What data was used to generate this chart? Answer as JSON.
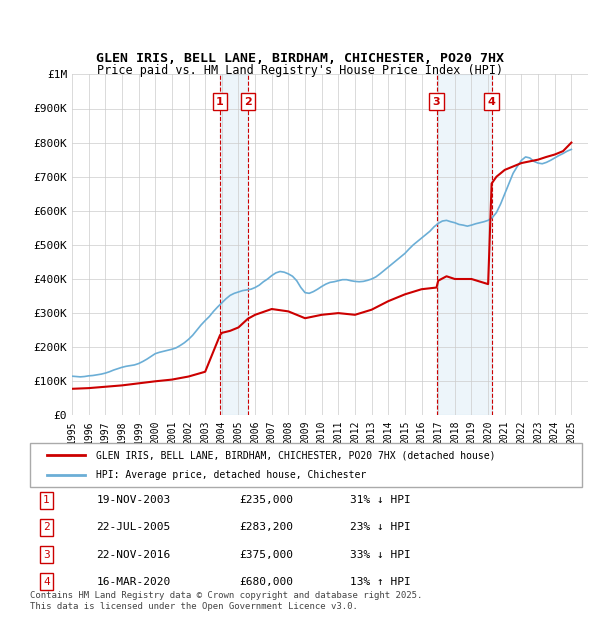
{
  "title1": "GLEN IRIS, BELL LANE, BIRDHAM, CHICHESTER, PO20 7HX",
  "title2": "Price paid vs. HM Land Registry's House Price Index (HPI)",
  "ylabel_ticks": [
    "£0",
    "£100K",
    "£200K",
    "£300K",
    "£400K",
    "£500K",
    "£600K",
    "£700K",
    "£800K",
    "£900K",
    "£1M"
  ],
  "ytick_values": [
    0,
    100000,
    200000,
    300000,
    400000,
    500000,
    600000,
    700000,
    800000,
    900000,
    1000000
  ],
  "xlim": [
    1995,
    2026
  ],
  "ylim": [
    0,
    1000000
  ],
  "hpi_color": "#6baed6",
  "price_color": "#cc0000",
  "transaction_color": "#cc0000",
  "grid_color": "#cccccc",
  "bg_color": "#ffffff",
  "transactions": [
    {
      "date_num": 2003.89,
      "price": 235000,
      "label": "1",
      "direction": "down",
      "pct": 31
    },
    {
      "date_num": 2005.56,
      "price": 283200,
      "label": "2",
      "direction": "down",
      "pct": 23
    },
    {
      "date_num": 2016.9,
      "price": 375000,
      "label": "3",
      "direction": "down",
      "pct": 33
    },
    {
      "date_num": 2020.21,
      "price": 680000,
      "label": "4",
      "direction": "up",
      "pct": 13
    }
  ],
  "transaction_table": [
    {
      "num": "1",
      "date": "19-NOV-2003",
      "price": "£235,000",
      "pct": "31%",
      "dir": "↓",
      "rel": "HPI"
    },
    {
      "num": "2",
      "date": "22-JUL-2005",
      "price": "£283,200",
      "pct": "23%",
      "dir": "↓",
      "rel": "HPI"
    },
    {
      "num": "3",
      "date": "22-NOV-2016",
      "price": "£375,000",
      "pct": "33%",
      "dir": "↓",
      "rel": "HPI"
    },
    {
      "num": "4",
      "date": "16-MAR-2020",
      "price": "£680,000",
      "pct": "13%",
      "dir": "↑",
      "rel": "HPI"
    }
  ],
  "legend_property_label": "GLEN IRIS, BELL LANE, BIRDHAM, CHICHESTER, PO20 7HX (detached house)",
  "legend_hpi_label": "HPI: Average price, detached house, Chichester",
  "footnote": "Contains HM Land Registry data © Crown copyright and database right 2025.\nThis data is licensed under the Open Government Licence v3.0.",
  "hpi_data": {
    "years": [
      1995.0,
      1995.25,
      1995.5,
      1995.75,
      1996.0,
      1996.25,
      1996.5,
      1996.75,
      1997.0,
      1997.25,
      1997.5,
      1997.75,
      1998.0,
      1998.25,
      1998.5,
      1998.75,
      1999.0,
      1999.25,
      1999.5,
      1999.75,
      2000.0,
      2000.25,
      2000.5,
      2000.75,
      2001.0,
      2001.25,
      2001.5,
      2001.75,
      2002.0,
      2002.25,
      2002.5,
      2002.75,
      2003.0,
      2003.25,
      2003.5,
      2003.75,
      2004.0,
      2004.25,
      2004.5,
      2004.75,
      2005.0,
      2005.25,
      2005.5,
      2005.75,
      2006.0,
      2006.25,
      2006.5,
      2006.75,
      2007.0,
      2007.25,
      2007.5,
      2007.75,
      2008.0,
      2008.25,
      2008.5,
      2008.75,
      2009.0,
      2009.25,
      2009.5,
      2009.75,
      2010.0,
      2010.25,
      2010.5,
      2010.75,
      2011.0,
      2011.25,
      2011.5,
      2011.75,
      2012.0,
      2012.25,
      2012.5,
      2012.75,
      2013.0,
      2013.25,
      2013.5,
      2013.75,
      2014.0,
      2014.25,
      2014.5,
      2014.75,
      2015.0,
      2015.25,
      2015.5,
      2015.75,
      2016.0,
      2016.25,
      2016.5,
      2016.75,
      2017.0,
      2017.25,
      2017.5,
      2017.75,
      2018.0,
      2018.25,
      2018.5,
      2018.75,
      2019.0,
      2019.25,
      2019.5,
      2019.75,
      2020.0,
      2020.25,
      2020.5,
      2020.75,
      2021.0,
      2021.25,
      2021.5,
      2021.75,
      2022.0,
      2022.25,
      2022.5,
      2022.75,
      2023.0,
      2023.25,
      2023.5,
      2023.75,
      2024.0,
      2024.25,
      2024.5,
      2024.75,
      2025.0
    ],
    "values": [
      115000,
      114000,
      113000,
      114000,
      116000,
      117000,
      119000,
      121000,
      124000,
      128000,
      133000,
      137000,
      141000,
      144000,
      146000,
      148000,
      152000,
      158000,
      165000,
      173000,
      181000,
      185000,
      188000,
      191000,
      194000,
      198000,
      205000,
      213000,
      223000,
      235000,
      250000,
      265000,
      278000,
      290000,
      305000,
      318000,
      330000,
      342000,
      352000,
      358000,
      362000,
      366000,
      368000,
      370000,
      375000,
      382000,
      392000,
      400000,
      410000,
      418000,
      422000,
      420000,
      415000,
      408000,
      395000,
      375000,
      360000,
      358000,
      363000,
      370000,
      378000,
      385000,
      390000,
      392000,
      395000,
      398000,
      398000,
      395000,
      393000,
      392000,
      393000,
      396000,
      400000,
      406000,
      415000,
      425000,
      435000,
      445000,
      455000,
      465000,
      475000,
      488000,
      500000,
      510000,
      520000,
      530000,
      540000,
      553000,
      563000,
      570000,
      572000,
      568000,
      565000,
      560000,
      558000,
      555000,
      558000,
      562000,
      565000,
      568000,
      572000,
      580000,
      595000,
      620000,
      650000,
      680000,
      710000,
      730000,
      748000,
      758000,
      755000,
      745000,
      740000,
      738000,
      742000,
      748000,
      755000,
      762000,
      768000,
      775000,
      780000
    ]
  },
  "price_path_data": {
    "years": [
      1995.0,
      1996.0,
      1997.0,
      1998.0,
      1999.0,
      2000.0,
      2001.0,
      2002.0,
      2003.0,
      2003.89,
      2004.0,
      2004.5,
      2005.0,
      2005.56,
      2006.0,
      2007.0,
      2008.0,
      2009.0,
      2010.0,
      2011.0,
      2012.0,
      2013.0,
      2014.0,
      2015.0,
      2016.0,
      2016.9,
      2017.0,
      2017.5,
      2018.0,
      2019.0,
      2020.0,
      2020.21,
      2020.5,
      2021.0,
      2021.5,
      2022.0,
      2022.5,
      2023.0,
      2023.5,
      2024.0,
      2024.5,
      2025.0
    ],
    "values": [
      78000,
      80000,
      84000,
      88000,
      94000,
      100000,
      105000,
      114000,
      128000,
      235000,
      242000,
      248000,
      258000,
      283200,
      295000,
      312000,
      305000,
      285000,
      295000,
      300000,
      295000,
      310000,
      335000,
      355000,
      370000,
      375000,
      395000,
      408000,
      400000,
      400000,
      385000,
      680000,
      700000,
      720000,
      730000,
      740000,
      745000,
      750000,
      758000,
      765000,
      775000,
      800000
    ]
  }
}
